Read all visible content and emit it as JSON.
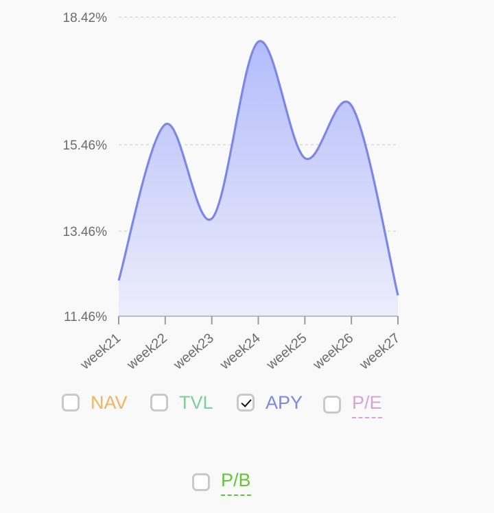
{
  "chart_data": {
    "type": "area",
    "categories": [
      "week21",
      "week22",
      "week23",
      "week24",
      "week25",
      "week26",
      "week27"
    ],
    "series": [
      {
        "name": "APY",
        "values": [
          12.3,
          15.93,
          13.75,
          17.85,
          15.15,
          16.37,
          11.95
        ]
      }
    ],
    "ylim": [
      11.46,
      18.42
    ],
    "yticks": [
      11.46,
      13.46,
      15.46,
      18.42
    ],
    "ytick_labels": [
      "11.46%",
      "13.46%",
      "15.46%",
      "18.42%"
    ],
    "grid": true,
    "line_color": "#7b87e6",
    "fill_top": "#b3bcfb",
    "fill_bottom": "#ecedfb"
  },
  "legend": {
    "items": [
      {
        "label": "NAV",
        "color": "#f2b35e",
        "checked": false,
        "dashed": false
      },
      {
        "label": "TVL",
        "color": "#7ccf97",
        "checked": false,
        "dashed": false
      },
      {
        "label": "APY",
        "color": "#7b87e6",
        "checked": true,
        "dashed": false
      },
      {
        "label": "P/E",
        "color": "#d7a2d6",
        "checked": false,
        "dashed": true
      },
      {
        "label": "P/B",
        "color": "#65c33c",
        "checked": false,
        "dashed": true
      }
    ]
  }
}
